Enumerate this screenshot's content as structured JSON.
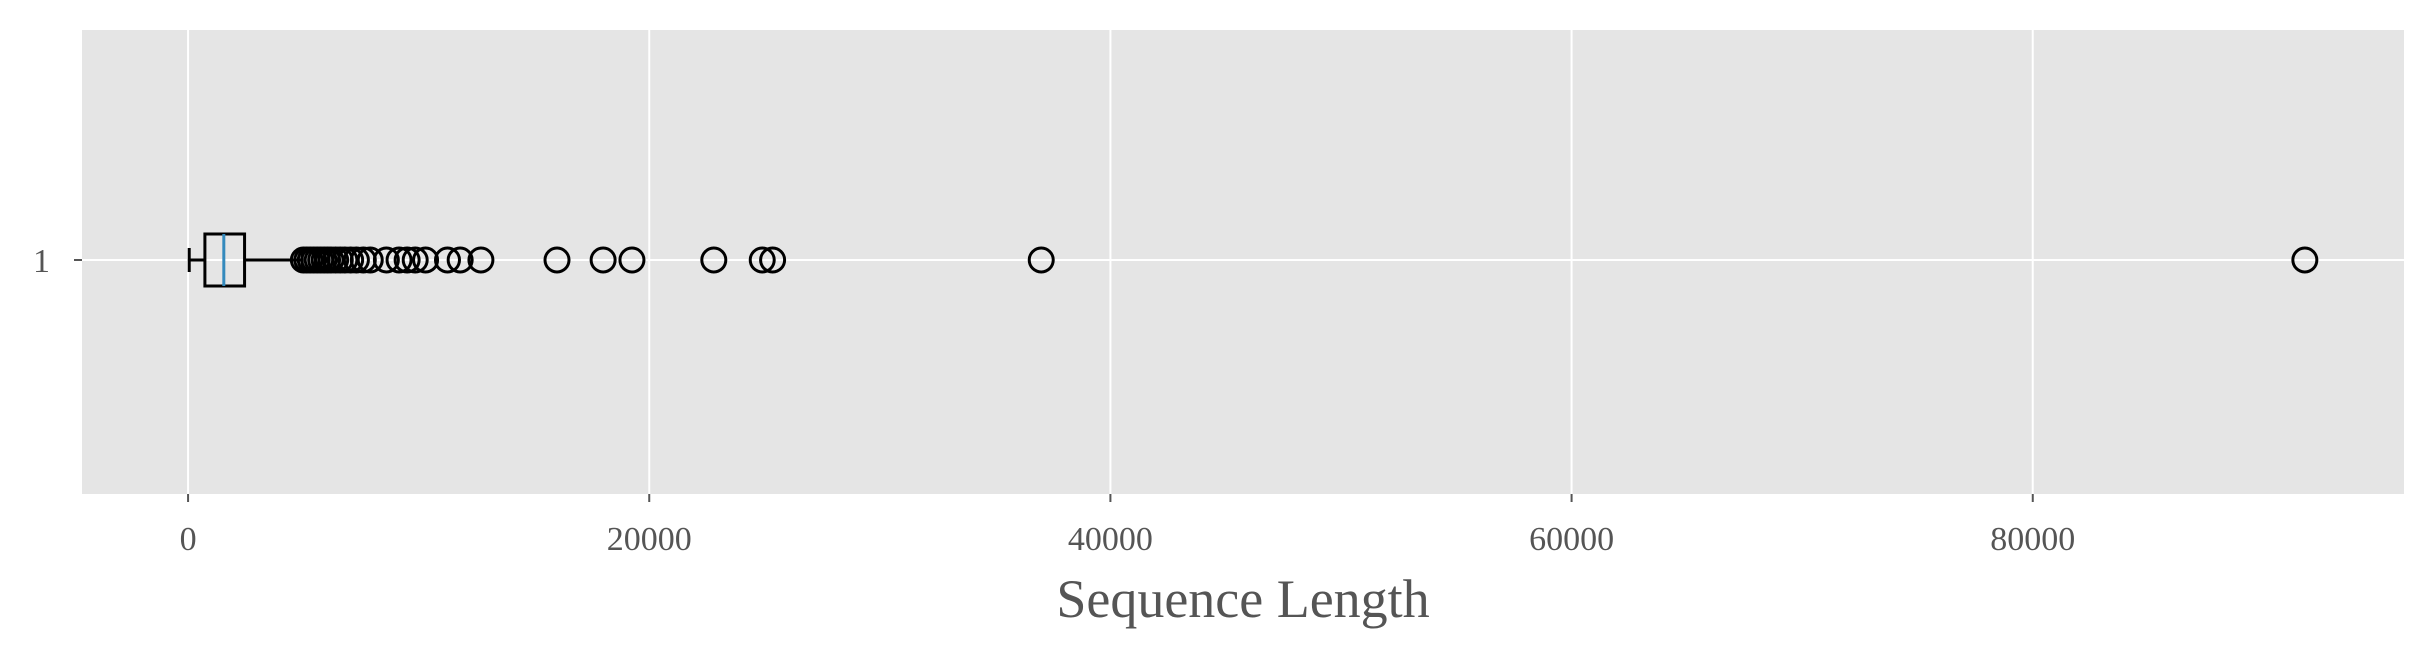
{
  "chart_data": {
    "type": "boxplot",
    "orientation": "horizontal",
    "title": "",
    "xlabel": "Sequence Length",
    "ylabel": "",
    "xlim": [
      -4600,
      96100
    ],
    "x_ticks": [
      0,
      20000,
      40000,
      60000,
      80000
    ],
    "x_tick_labels": [
      "0",
      "20000",
      "40000",
      "60000",
      "80000"
    ],
    "categories": [
      "1"
    ],
    "grid": true,
    "colors": {
      "plot_background": "#e5e5e5",
      "grid": "#ffffff",
      "box": "#000000",
      "median": "#348abd",
      "outlier": "#000000",
      "text": "#555555"
    },
    "box": {
      "whisker_low": 50,
      "q1": 730,
      "median": 1550,
      "q3": 2450,
      "whisker_high": 4950
    },
    "outliers": [
      5000,
      5150,
      5300,
      5450,
      5600,
      5750,
      5900,
      6050,
      6200,
      6400,
      6600,
      6800,
      7050,
      7300,
      7600,
      7900,
      8600,
      9150,
      9500,
      9850,
      10300,
      11250,
      11800,
      12700,
      16000,
      18000,
      19250,
      22800,
      24900,
      25350,
      37000,
      91800
    ]
  }
}
